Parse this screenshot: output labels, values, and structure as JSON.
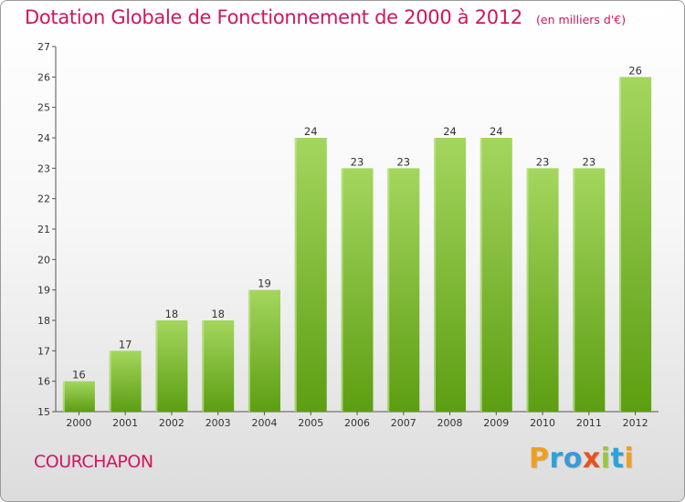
{
  "title": "Dotation Globale de Fonctionnement de 2000 à 2012",
  "unit": "(en milliers d'€)",
  "commune": "COURCHAPON",
  "brand": {
    "name": "Proxiti",
    "letters": [
      "P",
      "r",
      "o",
      "x",
      "i",
      "t",
      "i"
    ],
    "colors": [
      "#f0a020",
      "#2aa3d8",
      "#3a9bd5",
      "#e8531c",
      "#9bc53d",
      "#2aa3d8",
      "#f0a020"
    ]
  },
  "colors": {
    "bar_light": "#a4d65e",
    "bar_dark": "#5c9e12",
    "title": "#d2155e",
    "axis": "#555555"
  },
  "chart_data": {
    "type": "bar",
    "categories": [
      "2000",
      "2001",
      "2002",
      "2003",
      "2004",
      "2005",
      "2006",
      "2007",
      "2008",
      "2009",
      "2010",
      "2011",
      "2012"
    ],
    "values": [
      16,
      17,
      18,
      18,
      19,
      24,
      23,
      23,
      24,
      24,
      23,
      23,
      26
    ],
    "ylim": [
      15,
      27
    ],
    "yticks": [
      15,
      16,
      17,
      18,
      19,
      20,
      21,
      22,
      23,
      24,
      25,
      26,
      27
    ],
    "grid": false,
    "xlabel": "",
    "ylabel": ""
  }
}
